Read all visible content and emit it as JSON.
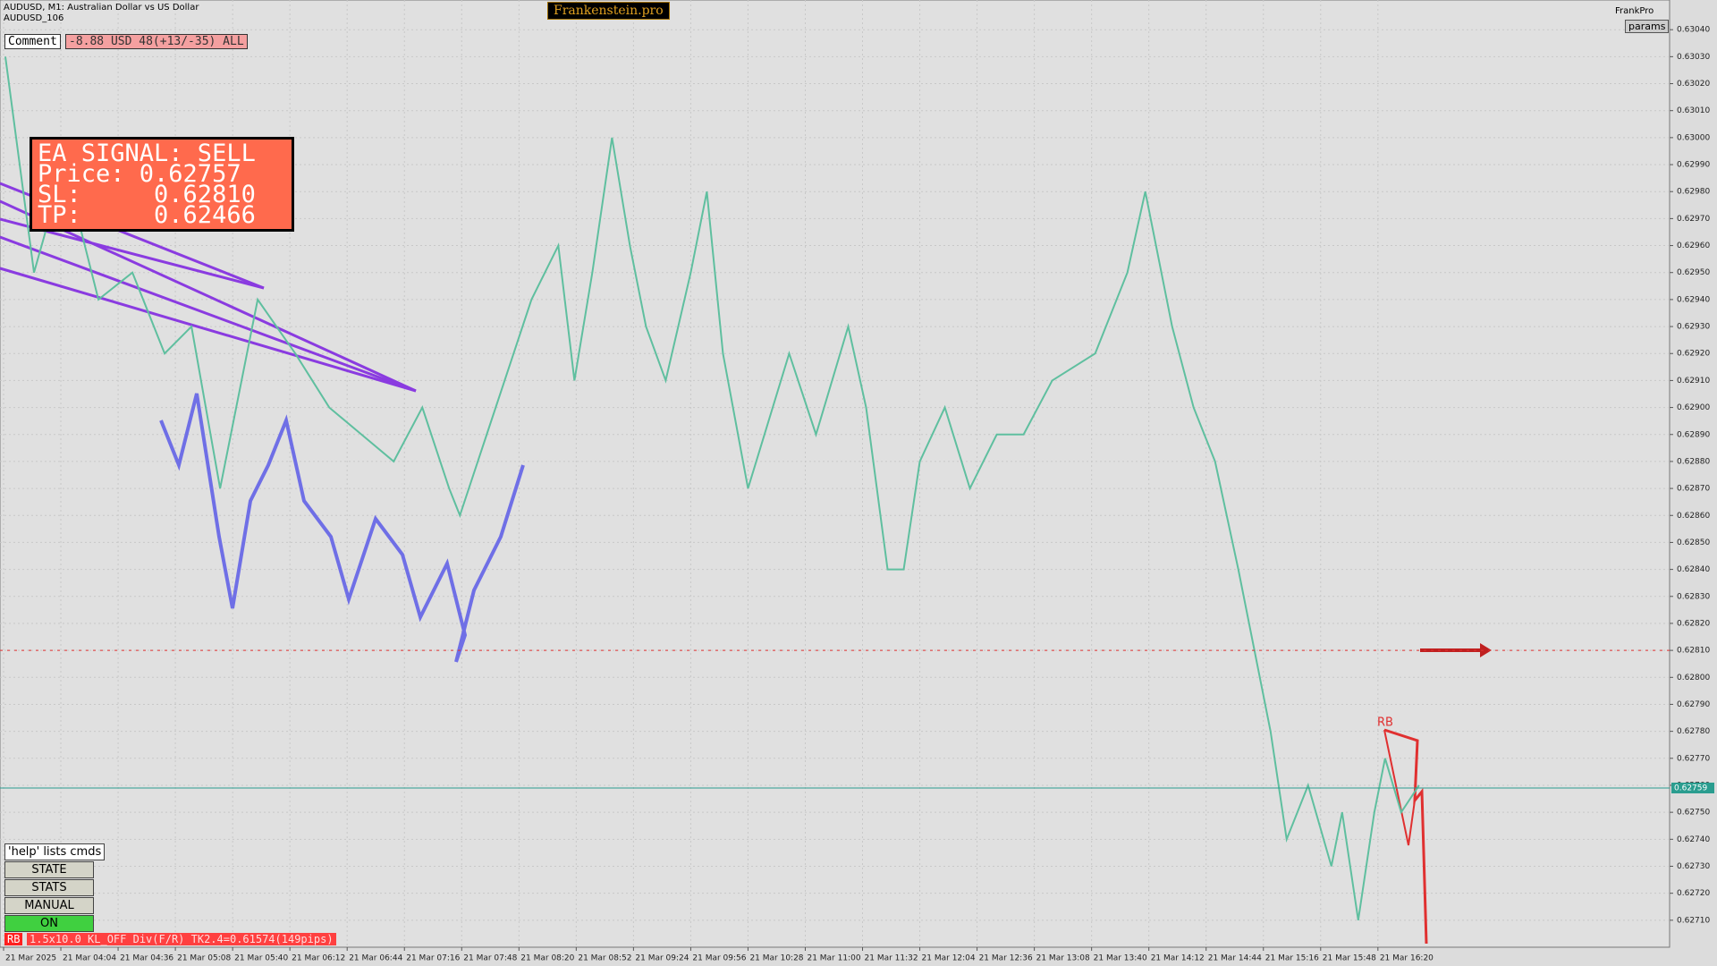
{
  "header": {
    "symbol": "AUDUSD, M1:  Australian Dollar vs US Dollar",
    "account": "AUDUSD_106",
    "brand": "Frankenstein.pro",
    "profile": "FrankPro",
    "params": "params"
  },
  "comment": {
    "label": "Comment",
    "text": "-8.88 USD 48(+13/-35) ALL"
  },
  "signal": {
    "lines": [
      "EA SIGNAL: SELL",
      "Price: 0.62757",
      "SL:     0.62810",
      "TP:     0.62466"
    ]
  },
  "buttons": [
    "'help' lists cmds",
    "STATE",
    "STATS",
    "MANUAL",
    "ON"
  ],
  "status": {
    "tag": "RB",
    "text": "1.5x10.0 KL_OFF Div(F/R) TK2.4=0.61574(149pips)"
  },
  "pattern_label": "RB",
  "chart_data": {
    "type": "line",
    "color": "#5fbf9f",
    "x": [
      213,
      229,
      246,
      265,
      284,
      302,
      317,
      333,
      354,
      375,
      394,
      412,
      430,
      446,
      461,
      467,
      482,
      492,
      507,
      522,
      531,
      541,
      552,
      562,
      571,
      582,
      596,
      605,
      614,
      628,
      651,
      666,
      684,
      694,
      706,
      715,
      724,
      738,
      752,
      767,
      782,
      798,
      822,
      840,
      850,
      865,
      877,
      889,
      902,
      911,
      920,
      929,
      941,
      954,
      960,
      969,
      978,
      984,
      993,
      1003
    ],
    "values": [
      0.6303,
      0.6295,
      0.6299,
      0.6294,
      0.6295,
      0.6292,
      0.6293,
      0.6287,
      0.6294,
      0.6292,
      0.629,
      0.6289,
      0.6288,
      0.629,
      0.6287,
      0.6286,
      0.6289,
      0.6291,
      0.6294,
      0.6296,
      0.6291,
      0.6295,
      0.63,
      0.6296,
      0.6293,
      0.6291,
      0.6295,
      0.6298,
      0.6292,
      0.6287,
      0.6292,
      0.6289,
      0.6293,
      0.629,
      0.6284,
      0.6284,
      0.6288,
      0.629,
      0.6287,
      0.6289,
      0.6289,
      0.6291,
      0.6292,
      0.6295,
      0.6298,
      0.6293,
      0.629,
      0.6288,
      0.6284,
      0.6281,
      0.6278,
      0.6274,
      0.6276,
      0.6273,
      0.6275,
      0.6271,
      0.6275,
      0.6277,
      0.6275,
      0.6276
    ],
    "xlim": [
      210,
      1143
    ],
    "ylim": [
      0.627,
      0.63051
    ],
    "xticks": [
      {
        "value": 212,
        "label": "21 Mar 2025"
      },
      {
        "value": 244,
        "label": "21 Mar 04:04"
      },
      {
        "value": 276,
        "label": "21 Mar 04:36"
      },
      {
        "value": 308,
        "label": "21 Mar 05:08"
      },
      {
        "value": 340,
        "label": "21 Mar 05:40"
      },
      {
        "value": 372,
        "label": "21 Mar 06:12"
      },
      {
        "value": 404,
        "label": "21 Mar 06:44"
      },
      {
        "value": 436,
        "label": "21 Mar 07:16"
      },
      {
        "value": 468,
        "label": "21 Mar 07:48"
      },
      {
        "value": 500,
        "label": "21 Mar 08:20"
      },
      {
        "value": 532,
        "label": "21 Mar 08:52"
      },
      {
        "value": 564,
        "label": "21 Mar 09:24"
      },
      {
        "value": 596,
        "label": "21 Mar 09:56"
      },
      {
        "value": 628,
        "label": "21 Mar 10:28"
      },
      {
        "value": 660,
        "label": "21 Mar 11:00"
      },
      {
        "value": 692,
        "label": "21 Mar 11:32"
      },
      {
        "value": 724,
        "label": "21 Mar 12:04"
      },
      {
        "value": 756,
        "label": "21 Mar 12:36"
      },
      {
        "value": 788,
        "label": "21 Mar 13:08"
      },
      {
        "value": 820,
        "label": "21 Mar 13:40"
      },
      {
        "value": 852,
        "label": "21 Mar 14:12"
      },
      {
        "value": 884,
        "label": "21 Mar 14:44"
      },
      {
        "value": 916,
        "label": "21 Mar 15:16"
      },
      {
        "value": 948,
        "label": "21 Mar 15:48"
      },
      {
        "value": 980,
        "label": "21 Mar 16:20"
      }
    ],
    "yticks": [
      {
        "value": 0.6304,
        "label": "0.63040"
      },
      {
        "value": 0.6303,
        "label": "0.63030"
      },
      {
        "value": 0.6302,
        "label": "0.63020"
      },
      {
        "value": 0.6301,
        "label": "0.63010"
      },
      {
        "value": 0.63,
        "label": "0.63000"
      },
      {
        "value": 0.6299,
        "label": "0.62990"
      },
      {
        "value": 0.6298,
        "label": "0.62980"
      },
      {
        "value": 0.6297,
        "label": "0.62970"
      },
      {
        "value": 0.6296,
        "label": "0.62960"
      },
      {
        "value": 0.6295,
        "label": "0.62950"
      },
      {
        "value": 0.6294,
        "label": "0.62940"
      },
      {
        "value": 0.6293,
        "label": "0.62930"
      },
      {
        "value": 0.6292,
        "label": "0.62920"
      },
      {
        "value": 0.6291,
        "label": "0.62910"
      },
      {
        "value": 0.629,
        "label": "0.62900"
      },
      {
        "value": 0.6289,
        "label": "0.62890"
      },
      {
        "value": 0.6288,
        "label": "0.62880"
      },
      {
        "value": 0.6287,
        "label": "0.62870"
      },
      {
        "value": 0.6286,
        "label": "0.62860"
      },
      {
        "value": 0.6285,
        "label": "0.62850"
      },
      {
        "value": 0.6284,
        "label": "0.62840"
      },
      {
        "value": 0.6283,
        "label": "0.62830"
      },
      {
        "value": 0.6282,
        "label": "0.62820"
      },
      {
        "value": 0.6281,
        "label": "0.62810"
      },
      {
        "value": 0.628,
        "label": "0.62800"
      },
      {
        "value": 0.6279,
        "label": "0.62790"
      },
      {
        "value": 0.6278,
        "label": "0.62780"
      },
      {
        "value": 0.6277,
        "label": "0.62770"
      },
      {
        "value": 0.6276,
        "label": "0.62760"
      },
      {
        "value": 0.6275,
        "label": "0.62750"
      },
      {
        "value": 0.6274,
        "label": "0.62740"
      },
      {
        "value": 0.6273,
        "label": "0.62730"
      },
      {
        "value": 0.6272,
        "label": "0.62720"
      },
      {
        "value": 0.6271,
        "label": "0.62710"
      }
    ],
    "grid": true,
    "levels": [
      {
        "value": 0.6281,
        "color": "#e03030"
      },
      {
        "value": 0.62759,
        "color": "#2a9d8f",
        "label": "0.62759"
      }
    ]
  }
}
